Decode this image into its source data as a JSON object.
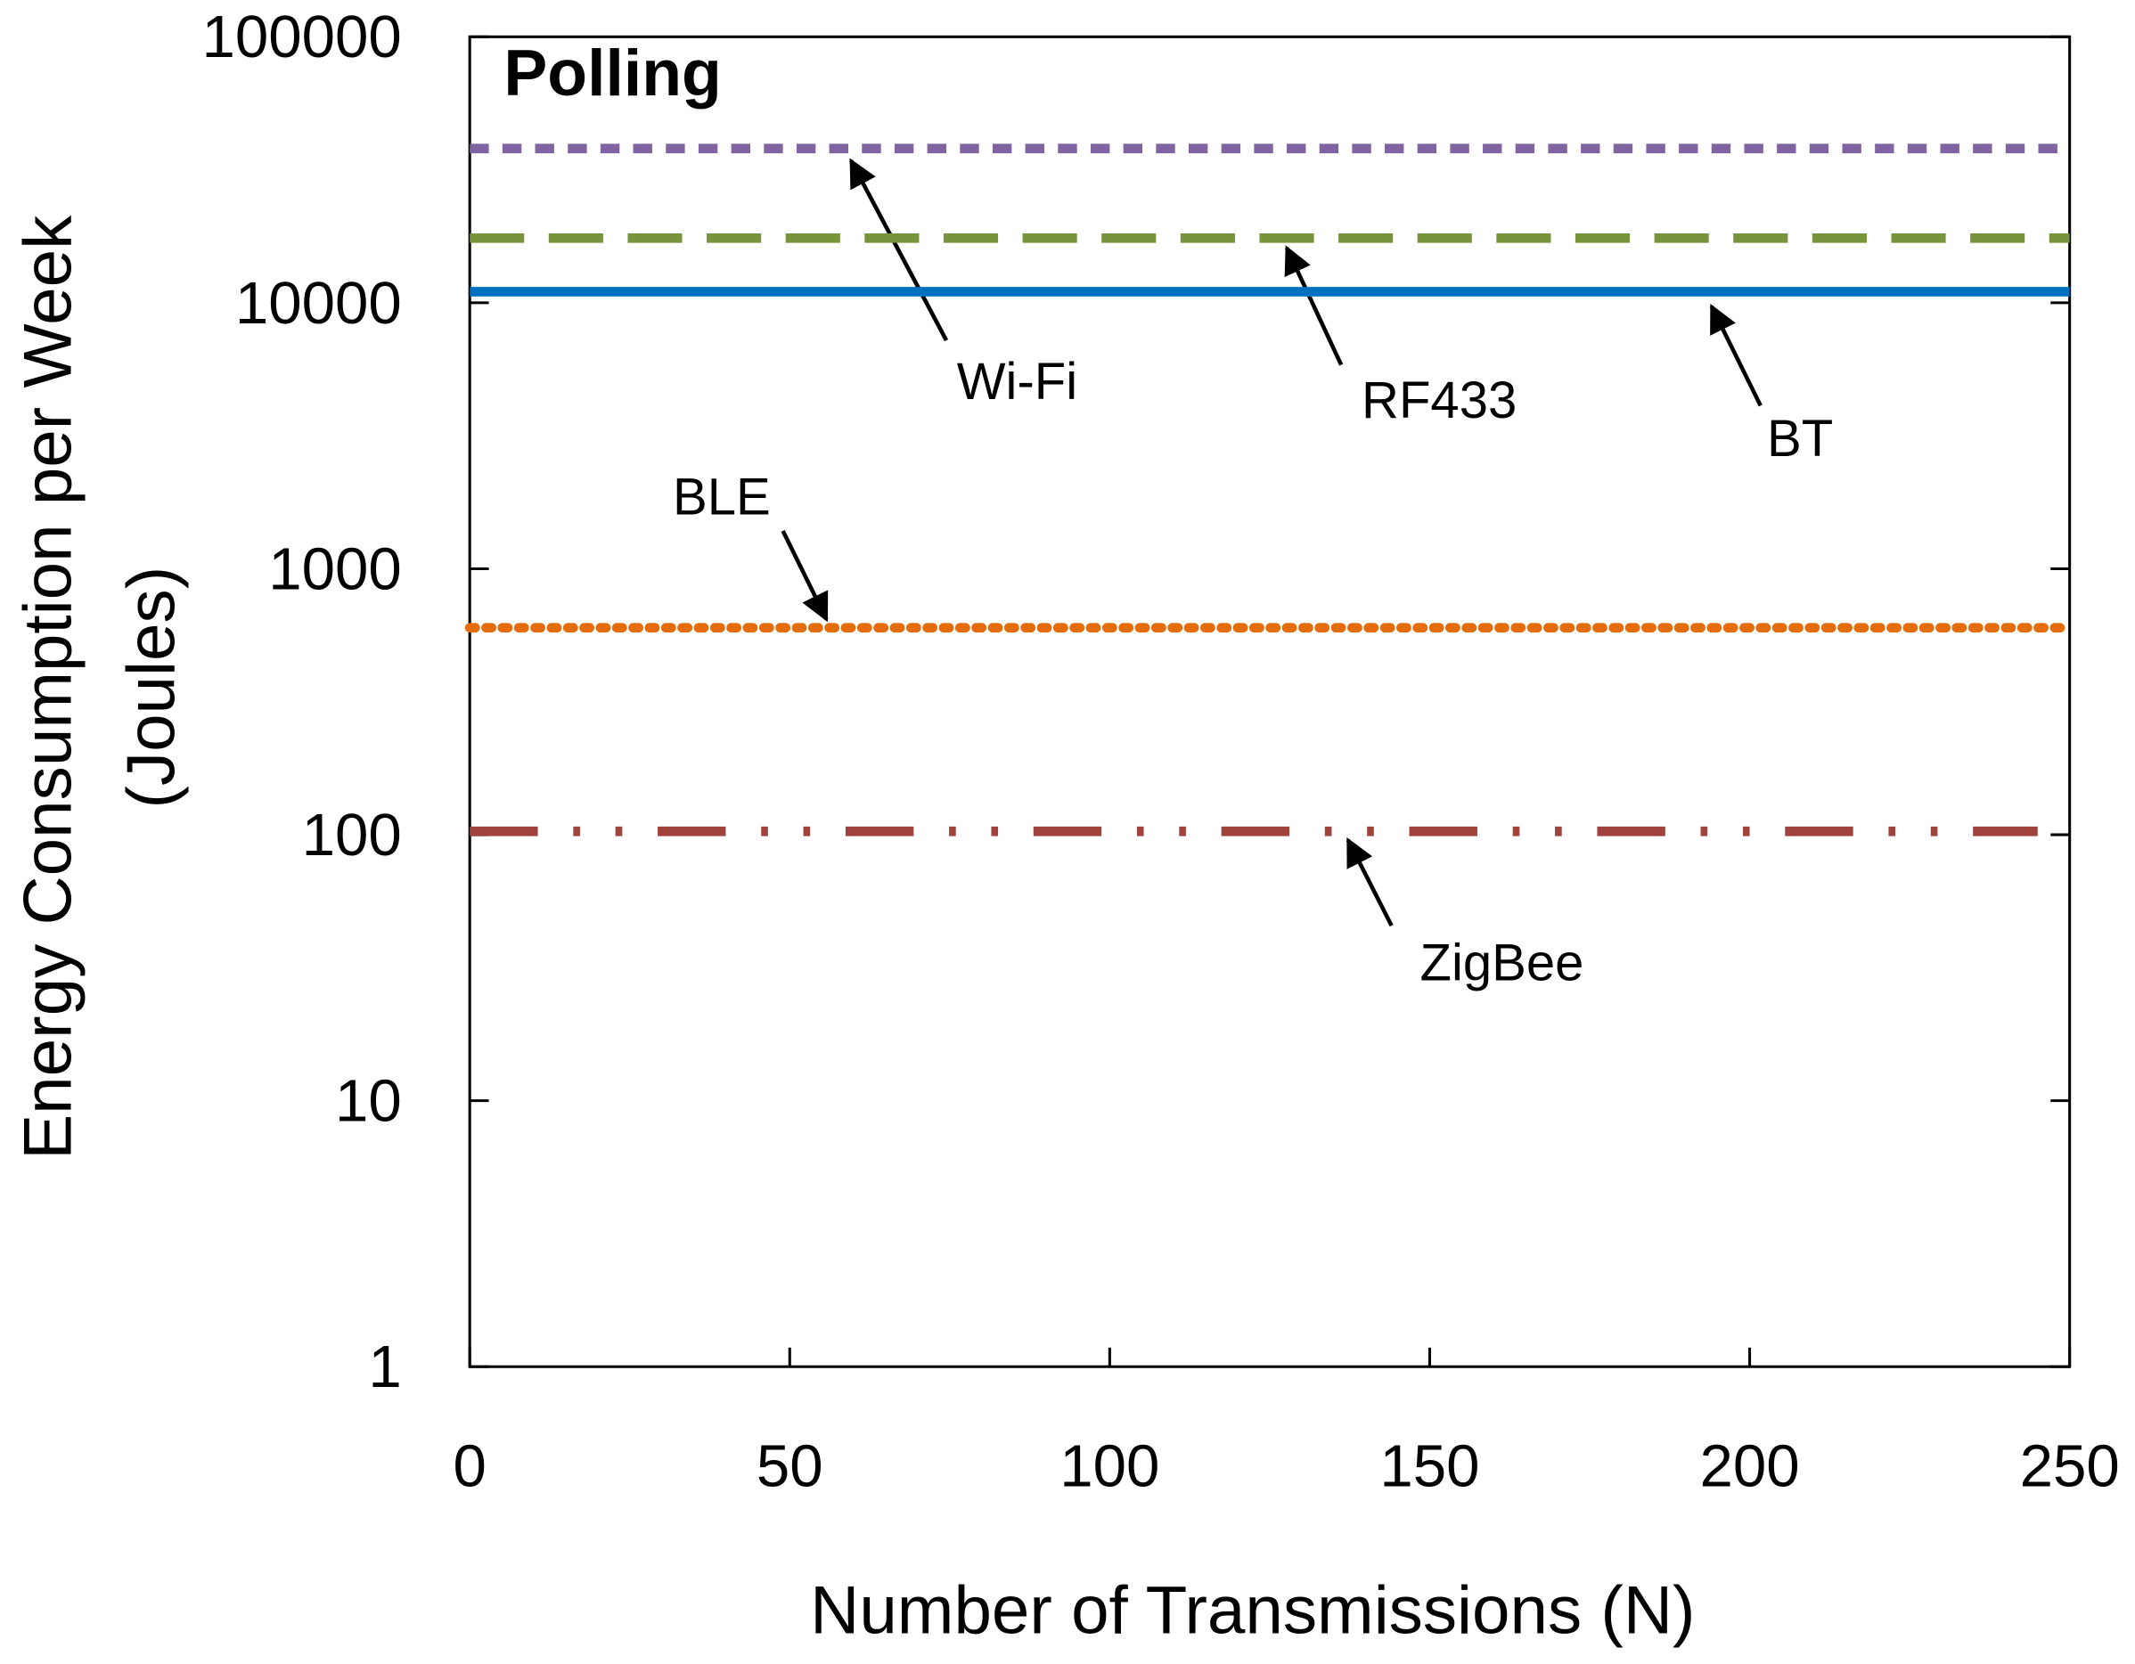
{
  "chart_data": {
    "type": "line",
    "title": "Polling",
    "xlabel": "Number of Transmissions (N)",
    "ylabel": [
      "Energy Consumption per Week",
      "(Joules)"
    ],
    "log_y": true,
    "xlim": [
      0,
      250
    ],
    "xticks": [
      0,
      50,
      100,
      150,
      200,
      250
    ],
    "ylim": [
      1,
      100000
    ],
    "yticks": [
      1,
      10,
      100,
      1000,
      10000,
      100000
    ],
    "series": [
      {
        "name": "Wi-Fi",
        "color": "#8064a2",
        "style": "dash",
        "x": [
          0,
          250
        ],
        "values": [
          38000,
          38000
        ]
      },
      {
        "name": "RF433",
        "color": "#77933c",
        "style": "longdash",
        "x": [
          0,
          250
        ],
        "values": [
          17500,
          17500
        ]
      },
      {
        "name": "BT",
        "color": "#0070c0",
        "style": "solid",
        "x": [
          0,
          250
        ],
        "values": [
          11000,
          11000
        ]
      },
      {
        "name": "BLE",
        "color": "#e46c0a",
        "style": "dot",
        "x": [
          0,
          250
        ],
        "values": [
          600,
          600
        ]
      },
      {
        "name": "ZigBee",
        "color": "#a0433d",
        "style": "dashdotdot",
        "x": [
          0,
          245
        ],
        "values": [
          103,
          103
        ]
      }
    ]
  }
}
